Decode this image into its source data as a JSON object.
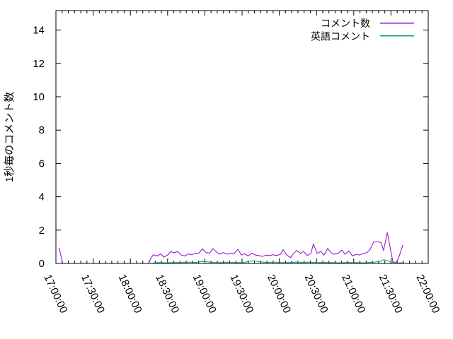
{
  "chart_data": {
    "type": "line",
    "title": "",
    "xlabel": "",
    "ylabel": "1秒毎のコメント数",
    "grid": false,
    "legend_position": "top-right-inside",
    "x_axis": {
      "tick_labels": [
        "17:00:00",
        "17:30:00",
        "18:00:00",
        "18:30:00",
        "19:00:00",
        "19:30:00",
        "20:00:00",
        "20:30:00",
        "21:00:00",
        "21:30:00",
        "22:00:00"
      ],
      "tick_minutes": [
        0,
        30,
        60,
        90,
        120,
        150,
        180,
        210,
        240,
        270,
        300
      ],
      "minor_tick_step_minutes": 5,
      "range_minutes": [
        0,
        300
      ],
      "label_rotation_deg": 65
    },
    "y_axis": {
      "tick_labels": [
        "0",
        "2",
        "4",
        "6",
        "8",
        "10",
        "12",
        "14"
      ],
      "tick_values": [
        0,
        2,
        4,
        6,
        8,
        10,
        12,
        14
      ],
      "range": [
        0,
        15.17
      ]
    },
    "series": [
      {
        "name": "コメント数",
        "color": "#9400D3",
        "segments": [
          [
            [
              2.5,
              0.95
            ],
            [
              5.5,
              0
            ]
          ],
          [
            [
              75,
              0.05
            ],
            [
              76.5,
              0.3
            ],
            [
              78.5,
              0.52
            ],
            [
              81.5,
              0.45
            ],
            [
              84.5,
              0.57
            ],
            [
              87,
              0.38
            ],
            [
              90,
              0.5
            ],
            [
              92.5,
              0.72
            ],
            [
              95,
              0.63
            ],
            [
              98,
              0.72
            ],
            [
              101,
              0.5
            ],
            [
              104,
              0.45
            ],
            [
              106.5,
              0.57
            ],
            [
              109.5,
              0.52
            ],
            [
              112.5,
              0.62
            ],
            [
              115,
              0.6
            ],
            [
              118,
              0.88
            ],
            [
              121,
              0.65
            ],
            [
              124,
              0.62
            ],
            [
              126.5,
              0.9
            ],
            [
              129.5,
              0.68
            ],
            [
              132,
              0.55
            ],
            [
              135,
              0.65
            ],
            [
              138,
              0.55
            ],
            [
              141,
              0.62
            ],
            [
              143.5,
              0.58
            ],
            [
              146.5,
              0.85
            ],
            [
              149.5,
              0.5
            ],
            [
              152,
              0.58
            ],
            [
              155,
              0.45
            ],
            [
              158,
              0.62
            ],
            [
              161,
              0.5
            ],
            [
              163.5,
              0.47
            ],
            [
              166.5,
              0.42
            ],
            [
              169.5,
              0.5
            ],
            [
              172,
              0.47
            ],
            [
              175,
              0.52
            ],
            [
              178,
              0.48
            ],
            [
              181,
              0.55
            ],
            [
              183,
              0.83
            ],
            [
              186,
              0.5
            ],
            [
              189,
              0.35
            ],
            [
              191.5,
              0.6
            ],
            [
              194,
              0.78
            ],
            [
              197,
              0.6
            ],
            [
              199.5,
              0.72
            ],
            [
              202.5,
              0.48
            ],
            [
              205.5,
              0.6
            ],
            [
              207.5,
              1.18
            ],
            [
              210.5,
              0.6
            ],
            [
              213.5,
              0.72
            ],
            [
              216,
              0.5
            ],
            [
              219,
              0.9
            ],
            [
              222,
              0.62
            ],
            [
              224.5,
              0.55
            ],
            [
              227.5,
              0.62
            ],
            [
              230.5,
              0.8
            ],
            [
              233,
              0.55
            ],
            [
              236,
              0.75
            ],
            [
              239,
              0.45
            ],
            [
              242,
              0.55
            ],
            [
              244.5,
              0.5
            ],
            [
              247.5,
              0.6
            ],
            [
              250.5,
              0.65
            ],
            [
              253,
              0.82
            ],
            [
              256,
              1.28
            ],
            [
              259,
              1.3
            ],
            [
              262,
              1.25
            ],
            [
              264,
              0.78
            ],
            [
              267,
              1.85
            ],
            [
              269,
              1.1
            ],
            [
              271.5,
              0.1
            ],
            [
              274,
              0.03
            ],
            [
              276,
              0.3
            ],
            [
              278,
              0.75
            ],
            [
              279.5,
              1.1
            ]
          ]
        ]
      },
      {
        "name": "英語コメント",
        "color": "#009E73",
        "segments": [
          [
            [
              77,
              0.02
            ],
            [
              83,
              0.05
            ],
            [
              89,
              0.04
            ],
            [
              95,
              0.06
            ],
            [
              101,
              0.05
            ],
            [
              107,
              0.08
            ],
            [
              113,
              0.06
            ],
            [
              117,
              0.12
            ],
            [
              121,
              0.1
            ],
            [
              127,
              0.06
            ],
            [
              133,
              0.05
            ],
            [
              139,
              0.07
            ],
            [
              145,
              0.05
            ],
            [
              151,
              0.06
            ],
            [
              157,
              0.13
            ],
            [
              160,
              0.16
            ],
            [
              164,
              0.1
            ],
            [
              170,
              0.06
            ],
            [
              175,
              0.08
            ],
            [
              181,
              0.06
            ],
            [
              187,
              0.05
            ],
            [
              193,
              0.08
            ],
            [
              199,
              0.06
            ],
            [
              205,
              0.07
            ],
            [
              211,
              0.05
            ],
            [
              217,
              0.06
            ],
            [
              223,
              0.05
            ],
            [
              229,
              0.04
            ],
            [
              235,
              0.06
            ],
            [
              241,
              0.05
            ],
            [
              247,
              0.04
            ],
            [
              253,
              0.06
            ],
            [
              257,
              0.08
            ],
            [
              261,
              0.12
            ],
            [
              264,
              0.22
            ],
            [
              267,
              0.18
            ],
            [
              270,
              0.08
            ],
            [
              274,
              0.04
            ],
            [
              277,
              0.03
            ],
            [
              280,
              0.05
            ]
          ]
        ]
      }
    ],
    "colors": {
      "background": "#ffffff",
      "border": "#000000",
      "text": "#000000"
    }
  }
}
